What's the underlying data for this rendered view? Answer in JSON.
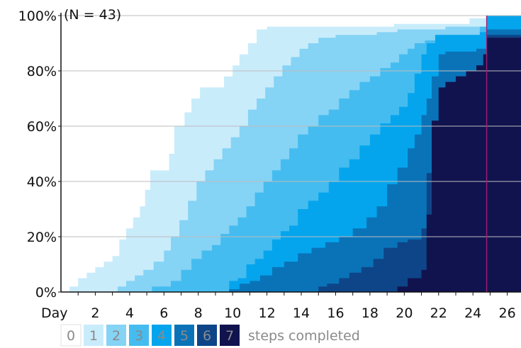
{
  "chart_data": {
    "type": "area",
    "note": "(N = 43)",
    "x_axis_label": "Day",
    "x_ticks": [
      2,
      4,
      6,
      8,
      10,
      12,
      14,
      16,
      18,
      20,
      22,
      24,
      26
    ],
    "y_ticks": [
      "0%",
      "20%",
      "40%",
      "60%",
      "80%",
      "100%"
    ],
    "xlim": [
      0,
      26.8
    ],
    "ylim": [
      0,
      100
    ],
    "grid": "horizontal",
    "marker_line_day": 24.8,
    "marker_line_color": "#a0206e",
    "legend": {
      "suffix": "steps completed",
      "placement": "bottom",
      "items": [
        {
          "label": "0",
          "color": "#ffffff"
        },
        {
          "label": "1",
          "color": "#c9ecfb"
        },
        {
          "label": "2",
          "color": "#85d3f5"
        },
        {
          "label": "3",
          "color": "#45bcef"
        },
        {
          "label": "4",
          "color": "#05a5ed"
        },
        {
          "label": "5",
          "color": "#0a73b8"
        },
        {
          "label": "6",
          "color": "#0e4588"
        },
        {
          "label": "7",
          "color": "#11134f"
        }
      ]
    },
    "series": [
      {
        "name": "7",
        "points": [
          [
            0,
            0
          ],
          [
            18.8,
            0
          ],
          [
            19.6,
            2
          ],
          [
            20.2,
            5
          ],
          [
            21.0,
            8
          ],
          [
            21.3,
            28
          ],
          [
            21.6,
            62
          ],
          [
            22.0,
            74
          ],
          [
            22.4,
            76
          ],
          [
            23.0,
            78
          ],
          [
            23.6,
            80
          ],
          [
            24.2,
            82
          ],
          [
            24.6,
            86
          ],
          [
            24.8,
            92
          ],
          [
            26.8,
            92
          ]
        ]
      },
      {
        "name": "6",
        "points": [
          [
            0,
            0
          ],
          [
            14.5,
            0
          ],
          [
            15.0,
            2
          ],
          [
            15.5,
            3
          ],
          [
            16.2,
            5
          ],
          [
            16.8,
            7
          ],
          [
            17.5,
            9
          ],
          [
            18.2,
            12
          ],
          [
            18.8,
            16
          ],
          [
            19.6,
            18
          ],
          [
            20.2,
            19
          ],
          [
            21.0,
            23
          ],
          [
            21.3,
            43
          ],
          [
            21.6,
            62
          ],
          [
            22.0,
            72
          ],
          [
            22.4,
            76
          ],
          [
            23.0,
            78
          ],
          [
            23.6,
            80
          ],
          [
            24.2,
            82
          ],
          [
            24.6,
            86
          ],
          [
            24.8,
            93
          ],
          [
            26.8,
            93
          ]
        ]
      },
      {
        "name": "5",
        "points": [
          [
            0,
            0
          ],
          [
            9.3,
            0
          ],
          [
            9.8,
            1
          ],
          [
            10.4,
            3
          ],
          [
            11.0,
            4
          ],
          [
            11.6,
            6
          ],
          [
            12.3,
            9
          ],
          [
            13.0,
            11
          ],
          [
            13.8,
            14
          ],
          [
            14.6,
            16
          ],
          [
            15.4,
            18
          ],
          [
            16.2,
            20
          ],
          [
            17.0,
            23
          ],
          [
            17.8,
            27
          ],
          [
            18.4,
            31
          ],
          [
            19.0,
            39
          ],
          [
            19.6,
            45
          ],
          [
            20.2,
            52
          ],
          [
            20.6,
            57
          ],
          [
            21.0,
            64
          ],
          [
            21.3,
            70
          ],
          [
            21.6,
            78
          ],
          [
            22.0,
            86
          ],
          [
            22.4,
            87
          ],
          [
            23.6,
            87
          ],
          [
            24.2,
            88
          ],
          [
            24.8,
            95
          ],
          [
            26.8,
            95
          ]
        ]
      },
      {
        "name": "4",
        "points": [
          [
            0,
            0
          ],
          [
            9.3,
            0
          ],
          [
            9.8,
            4
          ],
          [
            10.3,
            5
          ],
          [
            10.8,
            10
          ],
          [
            11.3,
            12
          ],
          [
            11.8,
            15
          ],
          [
            12.3,
            19
          ],
          [
            12.8,
            22
          ],
          [
            13.3,
            24
          ],
          [
            13.8,
            30
          ],
          [
            14.4,
            33
          ],
          [
            15.0,
            36
          ],
          [
            15.6,
            40
          ],
          [
            16.2,
            45
          ],
          [
            16.8,
            48
          ],
          [
            17.4,
            53
          ],
          [
            18.0,
            57
          ],
          [
            18.6,
            61
          ],
          [
            19.2,
            64
          ],
          [
            19.7,
            67
          ],
          [
            20.2,
            72
          ],
          [
            20.6,
            79
          ],
          [
            21.0,
            86
          ],
          [
            21.3,
            90
          ],
          [
            21.8,
            93
          ],
          [
            23.8,
            93
          ],
          [
            24.4,
            94
          ],
          [
            24.8,
            100
          ],
          [
            26.8,
            100
          ]
        ]
      },
      {
        "name": "3",
        "points": [
          [
            0,
            0
          ],
          [
            4.8,
            0
          ],
          [
            5.3,
            2
          ],
          [
            6.0,
            2
          ],
          [
            6.4,
            4
          ],
          [
            7.0,
            8
          ],
          [
            7.6,
            12
          ],
          [
            8.2,
            15
          ],
          [
            8.8,
            17
          ],
          [
            9.3,
            21
          ],
          [
            9.8,
            24
          ],
          [
            10.3,
            27
          ],
          [
            10.8,
            31
          ],
          [
            11.3,
            36
          ],
          [
            11.8,
            40
          ],
          [
            12.3,
            44
          ],
          [
            12.8,
            48
          ],
          [
            13.3,
            52
          ],
          [
            13.8,
            57
          ],
          [
            14.4,
            60
          ],
          [
            15.0,
            64
          ],
          [
            15.6,
            66
          ],
          [
            16.2,
            70
          ],
          [
            16.8,
            73
          ],
          [
            17.4,
            76
          ],
          [
            18.0,
            78
          ],
          [
            18.6,
            81
          ],
          [
            19.2,
            83
          ],
          [
            19.7,
            86
          ],
          [
            20.2,
            88
          ],
          [
            20.6,
            90
          ],
          [
            21.2,
            91
          ],
          [
            22.0,
            93
          ],
          [
            23.8,
            93
          ],
          [
            24.4,
            96
          ],
          [
            24.8,
            100
          ],
          [
            26.8,
            100
          ]
        ]
      },
      {
        "name": "2",
        "points": [
          [
            0,
            0
          ],
          [
            2.8,
            0
          ],
          [
            3.3,
            2
          ],
          [
            3.8,
            4
          ],
          [
            4.3,
            6
          ],
          [
            4.8,
            8
          ],
          [
            5.4,
            11
          ],
          [
            6.0,
            15
          ],
          [
            6.4,
            20
          ],
          [
            6.9,
            26
          ],
          [
            7.4,
            33
          ],
          [
            7.9,
            40
          ],
          [
            8.4,
            44
          ],
          [
            8.9,
            48
          ],
          [
            9.4,
            52
          ],
          [
            9.9,
            56
          ],
          [
            10.4,
            60
          ],
          [
            10.9,
            66
          ],
          [
            11.4,
            70
          ],
          [
            11.9,
            74
          ],
          [
            12.4,
            78
          ],
          [
            12.9,
            82
          ],
          [
            13.4,
            85
          ],
          [
            13.9,
            88
          ],
          [
            14.4,
            90
          ],
          [
            15.0,
            92
          ],
          [
            16.0,
            93
          ],
          [
            17.2,
            93
          ],
          [
            18.4,
            94
          ],
          [
            19.6,
            95
          ],
          [
            21.0,
            95
          ],
          [
            22.4,
            96
          ],
          [
            24.8,
            97
          ],
          [
            26.8,
            97
          ]
        ]
      },
      {
        "name": "1",
        "points": [
          [
            0,
            0
          ],
          [
            0.5,
            2
          ],
          [
            1.0,
            5
          ],
          [
            1.5,
            7
          ],
          [
            2.0,
            9
          ],
          [
            2.5,
            11
          ],
          [
            3.0,
            13
          ],
          [
            3.4,
            19
          ],
          [
            3.8,
            23
          ],
          [
            4.2,
            27
          ],
          [
            4.6,
            31
          ],
          [
            4.9,
            37
          ],
          [
            5.2,
            44
          ],
          [
            6.0,
            44
          ],
          [
            6.3,
            50
          ],
          [
            6.6,
            60
          ],
          [
            7.2,
            65
          ],
          [
            7.6,
            70
          ],
          [
            8.1,
            74
          ],
          [
            9.0,
            74
          ],
          [
            9.5,
            78
          ],
          [
            10.0,
            82
          ],
          [
            10.4,
            86
          ],
          [
            10.9,
            90
          ],
          [
            11.4,
            95
          ],
          [
            12.0,
            96
          ],
          [
            14.4,
            96
          ],
          [
            16.0,
            96
          ],
          [
            18.6,
            96
          ],
          [
            19.4,
            97
          ],
          [
            21.8,
            97
          ],
          [
            23.8,
            99
          ],
          [
            24.8,
            100
          ],
          [
            26.8,
            100
          ]
        ]
      },
      {
        "name": "0",
        "points": [
          [
            0,
            0
          ],
          [
            0.5,
            2
          ],
          [
            1.0,
            5
          ],
          [
            1.5,
            7
          ],
          [
            2.0,
            9
          ],
          [
            2.5,
            11
          ],
          [
            3.0,
            13
          ],
          [
            3.4,
            19
          ],
          [
            3.8,
            23
          ],
          [
            4.2,
            27
          ],
          [
            4.6,
            31
          ],
          [
            4.9,
            37
          ],
          [
            5.2,
            44
          ],
          [
            6.0,
            44
          ],
          [
            6.3,
            50
          ],
          [
            6.6,
            60
          ],
          [
            7.2,
            65
          ],
          [
            7.6,
            70
          ],
          [
            8.1,
            74
          ],
          [
            9.0,
            74
          ],
          [
            9.5,
            78
          ],
          [
            10.0,
            82
          ],
          [
            10.4,
            86
          ],
          [
            10.9,
            90
          ],
          [
            11.4,
            95
          ],
          [
            12.0,
            96
          ],
          [
            14.4,
            96
          ],
          [
            16.0,
            96
          ],
          [
            18.6,
            96
          ],
          [
            19.4,
            97
          ],
          [
            21.8,
            97
          ],
          [
            23.8,
            99
          ],
          [
            24.8,
            100
          ],
          [
            26.8,
            100
          ]
        ]
      }
    ]
  }
}
